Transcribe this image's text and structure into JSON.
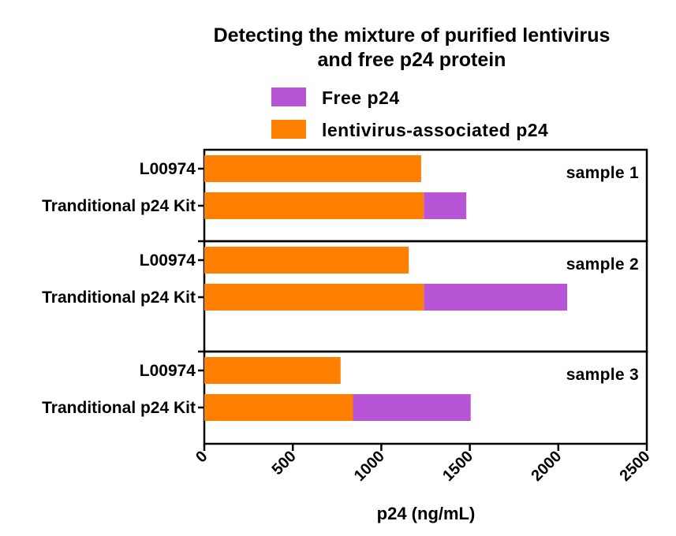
{
  "chart_data": {
    "type": "bar",
    "orientation": "horizontal",
    "stacked": true,
    "title_lines": [
      "Detecting the mixture of purified lentivirus",
      "and free p24 protein"
    ],
    "xlabel": "p24 (ng/mL)",
    "xlim": [
      0,
      2500
    ],
    "xticks": [
      0,
      500,
      1000,
      1500,
      2000,
      2500
    ],
    "xtick_labels": [
      "0",
      "500",
      "1000",
      "1500",
      "2000",
      "2500"
    ],
    "legend": [
      {
        "name": "Free p24",
        "color": "#B755D6"
      },
      {
        "name": "lentivirus-associated p24",
        "color": "#FF8000"
      }
    ],
    "legend_position": "top",
    "panels": [
      {
        "label": "sample 1",
        "bars": [
          {
            "category": "L00974",
            "lentivirus_associated": 1225,
            "free": 0
          },
          {
            "category": "Tranditional p24 Kit",
            "lentivirus_associated": 1240,
            "free": 240
          }
        ]
      },
      {
        "label": "sample 2",
        "bars": [
          {
            "category": "L00974",
            "lentivirus_associated": 1155,
            "free": 0
          },
          {
            "category": "Tranditional p24 Kit",
            "lentivirus_associated": 1240,
            "free": 810
          }
        ]
      },
      {
        "label": "sample 3",
        "bars": [
          {
            "category": "L00974",
            "lentivirus_associated": 770,
            "free": 0
          },
          {
            "category": "Tranditional p24 Kit",
            "lentivirus_associated": 840,
            "free": 665
          }
        ]
      }
    ],
    "colors": {
      "lentivirus": "#FF8000",
      "free": "#B755D6",
      "axis": "#000000"
    }
  }
}
